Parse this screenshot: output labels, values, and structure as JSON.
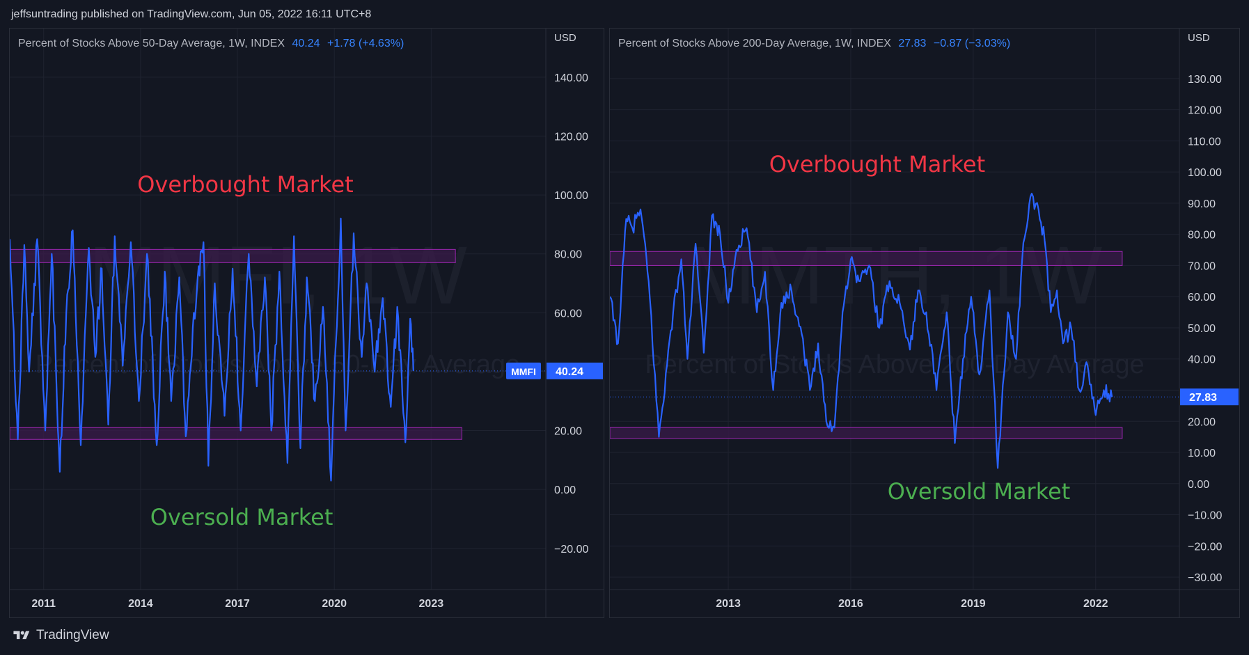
{
  "header": {
    "publisher_text": "jeffsuntrading published on TradingView.com, Jun 05, 2022 16:11 UTC+8"
  },
  "footer": {
    "brand": "TradingView"
  },
  "colors": {
    "background": "#131722",
    "line": "#2962ff",
    "band_border": "#9c27b0",
    "band_fill": "#3a1b4a",
    "overbought": "#f23645",
    "oversold": "#4caf50",
    "grid": "#1f2330",
    "axis_text": "#d1d4dc"
  },
  "chart_data": [
    {
      "type": "line",
      "title": "Percent of Stocks Above 50-Day Average, 1W, INDEX",
      "last": "40.24",
      "change": "+1.78 (+4.63%)",
      "watermark_symbol": "MMFI, 1W",
      "watermark_desc": "Percent of Stocks Above 50-Day Average",
      "currency": "USD",
      "symbol_tag": "MMFI",
      "last_value": 40.24,
      "ylim": [
        -34,
        148
      ],
      "yticks": [
        -20,
        0,
        20,
        40,
        60,
        80,
        100,
        120,
        140
      ],
      "ytick_labels": [
        "−20.00",
        "0.00",
        "20.00",
        "40.00",
        "60.00",
        "80.00",
        "100.00",
        "120.00",
        "140.00"
      ],
      "hidden_tick": 40,
      "xlim": [
        2009.95,
        2026.55
      ],
      "xticks": [
        2011,
        2014,
        2017,
        2020,
        2023
      ],
      "xtick_labels": [
        "2011",
        "2014",
        "2017",
        "2020",
        "2023"
      ],
      "bands": [
        {
          "x0": 2009.95,
          "x1": 2023.75,
          "y0": 77,
          "y1": 81.5
        },
        {
          "x0": 2009.95,
          "x1": 2023.95,
          "y0": 17,
          "y1": 21
        }
      ],
      "annotations": [
        {
          "text": "Overbought Market",
          "kind": "overbought",
          "x": 2013.9,
          "y": 101
        },
        {
          "text": "Oversold Market",
          "kind": "oversold",
          "x": 2014.3,
          "y": -12
        }
      ],
      "x": [
        2009.95,
        2010.2,
        2010.4,
        2010.55,
        2010.8,
        2011.05,
        2011.25,
        2011.5,
        2011.7,
        2011.9,
        2012.15,
        2012.4,
        2012.6,
        2012.8,
        2013.0,
        2013.2,
        2013.45,
        2013.7,
        2013.95,
        2014.2,
        2014.5,
        2014.75,
        2014.95,
        2015.2,
        2015.4,
        2015.65,
        2015.95,
        2016.1,
        2016.3,
        2016.6,
        2016.85,
        2017.1,
        2017.35,
        2017.6,
        2017.85,
        2018.05,
        2018.3,
        2018.55,
        2018.75,
        2018.95,
        2019.15,
        2019.4,
        2019.65,
        2019.9,
        2020.05,
        2020.2,
        2020.35,
        2020.6,
        2020.85,
        2021.0,
        2021.25,
        2021.5,
        2021.75,
        2021.95,
        2022.2,
        2022.35,
        2022.45
      ],
      "y": [
        85,
        17,
        83,
        40,
        85,
        20,
        80,
        6,
        60,
        88,
        15,
        82,
        45,
        75,
        22,
        86,
        42,
        84,
        30,
        80,
        15,
        74,
        30,
        72,
        18,
        60,
        84,
        8,
        70,
        25,
        75,
        20,
        80,
        35,
        72,
        20,
        74,
        9,
        86,
        14,
        72,
        30,
        62,
        3,
        50,
        92,
        20,
        87,
        45,
        70,
        40,
        65,
        28,
        62,
        16,
        58,
        40.24
      ]
    },
    {
      "type": "line",
      "title": "Percent of Stocks Above 200-Day Average, 1W, INDEX",
      "last": "27.83",
      "change": "−0.87 (−3.03%)",
      "watermark_symbol": "MMTH, 1W",
      "watermark_desc": "Percent of Stocks Above 200-Day Average",
      "currency": "USD",
      "last_value": 27.83,
      "ylim": [
        -34,
        138
      ],
      "yticks": [
        -30,
        -20,
        -10,
        0,
        10,
        20,
        30,
        40,
        50,
        60,
        70,
        80,
        90,
        100,
        110,
        120,
        130
      ],
      "ytick_labels": [
        "−30.00",
        "−20.00",
        "−10.00",
        "0.00",
        "10.00",
        "20.00",
        "30.00",
        "40.00",
        "50.00",
        "60.00",
        "70.00",
        "80.00",
        "90.00",
        "100.00",
        "110.00",
        "120.00",
        "130.00"
      ],
      "hidden_tick": 30,
      "xlim": [
        2010.1,
        2024.05
      ],
      "xticks": [
        2013,
        2016,
        2019,
        2022
      ],
      "xtick_labels": [
        "2013",
        "2016",
        "2019",
        "2022"
      ],
      "bands": [
        {
          "x0": 2010.1,
          "x1": 2022.65,
          "y0": 70,
          "y1": 74.5
        },
        {
          "x0": 2010.1,
          "x1": 2022.65,
          "y0": 14.5,
          "y1": 18
        }
      ],
      "annotations": [
        {
          "text": "Overbought Market",
          "kind": "overbought",
          "x": 2014.0,
          "y": 100
        },
        {
          "text": "Oversold Market",
          "kind": "oversold",
          "x": 2016.9,
          "y": -5
        }
      ],
      "x": [
        2010.1,
        2010.3,
        2010.5,
        2010.65,
        2010.85,
        2011.05,
        2011.3,
        2011.5,
        2011.65,
        2011.85,
        2012.0,
        2012.2,
        2012.4,
        2012.6,
        2012.8,
        2013.0,
        2013.2,
        2013.45,
        2013.7,
        2013.9,
        2014.1,
        2014.3,
        2014.55,
        2014.8,
        2015.0,
        2015.2,
        2015.4,
        2015.6,
        2015.8,
        2016.0,
        2016.2,
        2016.45,
        2016.7,
        2016.95,
        2017.2,
        2017.45,
        2017.65,
        2017.85,
        2018.1,
        2018.35,
        2018.55,
        2018.75,
        2018.95,
        2019.15,
        2019.4,
        2019.6,
        2019.85,
        2020.05,
        2020.2,
        2020.4,
        2020.6,
        2020.75,
        2020.9,
        2021.05,
        2021.2,
        2021.4,
        2021.6,
        2021.8,
        2022.0,
        2022.2,
        2022.4
      ],
      "y": [
        60,
        45,
        85,
        82,
        88,
        65,
        15,
        38,
        55,
        72,
        40,
        77,
        42,
        86,
        80,
        58,
        75,
        82,
        55,
        68,
        30,
        58,
        62,
        48,
        30,
        45,
        20,
        18,
        55,
        72,
        65,
        70,
        50,
        65,
        58,
        43,
        62,
        55,
        30,
        55,
        13,
        40,
        60,
        35,
        62,
        5,
        55,
        40,
        72,
        92,
        88,
        78,
        55,
        62,
        45,
        50,
        30,
        38,
        22,
        30,
        27.83
      ]
    }
  ]
}
